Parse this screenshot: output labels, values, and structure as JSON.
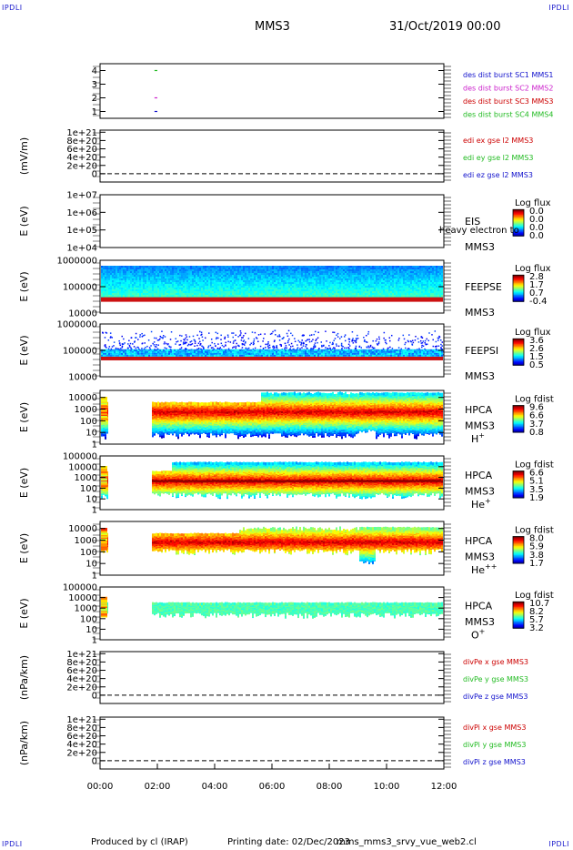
{
  "corners": {
    "tl": "IPDLI",
    "tr": "IPDLI",
    "bl": "IPDLI",
    "br": "IPDLI"
  },
  "header": {
    "title": "MMS3",
    "date": "31/Oct/2019 00:00"
  },
  "footer": {
    "produced": "Produced by cl (IRAP)",
    "printing": "Printing date: 02/Dec/2023",
    "script": "mms_mms3_srvy_vue_web2.cl"
  },
  "colors": {
    "mms1": "#1111cc",
    "mms2": "#cc22cc",
    "mms3": "#cc0000",
    "mms4": "#22bb22"
  },
  "chart_data": [
    {
      "type": "line",
      "id": "burst",
      "yticks": [
        "4",
        "3",
        "2",
        "1"
      ],
      "ylim": [
        0.5,
        4.5
      ],
      "legend": [
        "des dist burst SC1 MMS1",
        "des dist burst SC2 MMS2",
        "des dist burst SC3 MMS3",
        "des dist burst SC4 MMS4"
      ],
      "series": [
        {
          "x": [
            1.9,
            2.0
          ],
          "y": [
            4,
            4
          ]
        },
        {
          "x": [
            1.9,
            2.0
          ],
          "y": [
            2,
            2
          ]
        },
        {
          "x": [
            1.9,
            2.0
          ],
          "y": [
            1,
            1
          ]
        }
      ]
    },
    {
      "type": "line",
      "id": "edi",
      "ylabel": "(mV/m)",
      "yticks": [
        "1e+21",
        "8e+20",
        "6e+20",
        "4e+20",
        "2e+20",
        "0"
      ],
      "ylim": [
        -2e+20,
        1.05e+21
      ],
      "legend": [
        "edi ex gse l2 MMS3",
        "edi ey gse l2 MMS3",
        "edi ez gse l2 MMS3"
      ],
      "zero_line": true
    },
    {
      "type": "heatmap",
      "id": "eis",
      "ylabel": "E (eV)",
      "yticks": [
        "1e+07",
        "1e+06",
        "1e+05",
        "1e+04"
      ],
      "yscale": "log",
      "ylim": [
        10000,
        10000000
      ],
      "instrument": [
        "EIS",
        "MMS3"
      ],
      "overlay_text": "heavy electron to",
      "cbar_title": "Log flux",
      "cbar_ticks": [
        "0.0",
        "0.0",
        "0.0",
        "0.0"
      ]
    },
    {
      "type": "heatmap",
      "id": "feepse",
      "ylabel": "E (eV)",
      "yticks": [
        "1000000",
        "100000",
        "10000"
      ],
      "yscale": "log",
      "ylim": [
        10000,
        1000000
      ],
      "instrument": [
        "FEEPSE",
        "MMS3"
      ],
      "cbar_title": "Log flux",
      "cbar_ticks": [
        "2.8",
        "1.7",
        "0.7",
        "-0.4"
      ]
    },
    {
      "type": "heatmap",
      "id": "feepsi",
      "ylabel": "E (eV)",
      "yticks": [
        "1000000",
        "100000",
        "10000"
      ],
      "yscale": "log",
      "ylim": [
        10000,
        1000000
      ],
      "instrument": [
        "FEEPSI",
        "MMS3"
      ],
      "cbar_title": "Log flux",
      "cbar_ticks": [
        "3.6",
        "2.6",
        "1.5",
        "0.5"
      ]
    },
    {
      "type": "heatmap",
      "id": "hpca_h",
      "ylabel": "E (eV)",
      "yticks": [
        "10000",
        "1000",
        "100",
        "10",
        "1"
      ],
      "yscale": "log",
      "ylim": [
        1,
        40000
      ],
      "instrument": [
        "HPCA",
        "MMS3",
        "H+"
      ],
      "cbar_title": "Log fdist",
      "cbar_ticks": [
        "9.6",
        "6.6",
        "3.7",
        "0.8"
      ]
    },
    {
      "type": "heatmap",
      "id": "hpca_he",
      "ylabel": "E (eV)",
      "yticks": [
        "100000",
        "10000",
        "1000",
        "100",
        "10",
        "1"
      ],
      "yscale": "log",
      "ylim": [
        1,
        100000
      ],
      "instrument": [
        "HPCA",
        "MMS3",
        "He+"
      ],
      "cbar_title": "Log fdist",
      "cbar_ticks": [
        "6.6",
        "5.1",
        "3.5",
        "1.9"
      ]
    },
    {
      "type": "heatmap",
      "id": "hpca_hepp",
      "ylabel": "E (eV)",
      "yticks": [
        "10000",
        "1000",
        "100",
        "10",
        "1"
      ],
      "yscale": "log",
      "ylim": [
        1,
        40000
      ],
      "instrument": [
        "HPCA",
        "MMS3",
        "He++"
      ],
      "cbar_title": "Log fdist",
      "cbar_ticks": [
        "8.0",
        "5.9",
        "3.8",
        "1.7"
      ]
    },
    {
      "type": "heatmap",
      "id": "hpca_o",
      "ylabel": "E (eV)",
      "yticks": [
        "100000",
        "10000",
        "1000",
        "100",
        "10",
        "1"
      ],
      "yscale": "log",
      "ylim": [
        1,
        100000
      ],
      "instrument": [
        "HPCA",
        "MMS3",
        "O+"
      ],
      "cbar_title": "Log fdist",
      "cbar_ticks": [
        "10.7",
        "8.2",
        "5.7",
        "3.2"
      ]
    },
    {
      "type": "line",
      "id": "divpe",
      "ylabel": "(nPa/km)",
      "yticks": [
        "1e+21",
        "8e+20",
        "6e+20",
        "4e+20",
        "2e+20",
        "0"
      ],
      "ylim": [
        -2e+20,
        1.05e+21
      ],
      "legend": [
        "divPe x gse MMS3",
        "divPe y gse MMS3",
        "divPe z gse MMS3"
      ],
      "zero_line": true
    },
    {
      "type": "line",
      "id": "divpi",
      "ylabel": "(nPa/km)",
      "yticks": [
        "1e+21",
        "8e+20",
        "6e+20",
        "4e+20",
        "2e+20",
        "0"
      ],
      "ylim": [
        -2e+20,
        1.05e+21
      ],
      "legend": [
        "divPi x gse MMS3",
        "divPi y gse MMS3",
        "divPi z gse MMS3"
      ],
      "zero_line": true
    }
  ],
  "xaxis": {
    "ticks": [
      "00:00",
      "02:00",
      "04:00",
      "06:00",
      "08:00",
      "10:00",
      "12:00"
    ],
    "xlim": [
      0,
      12
    ]
  }
}
